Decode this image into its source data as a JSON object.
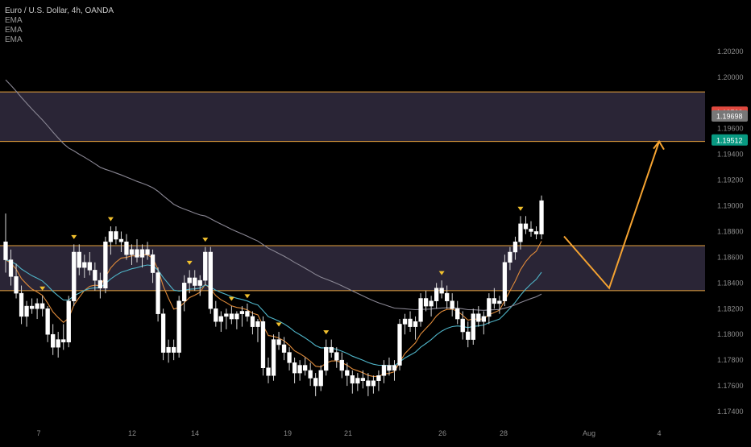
{
  "chart_data": {
    "type": "candlestick",
    "title": "Euro / U.S. Dollar, 4h, OANDA",
    "indicators": [
      "EMA",
      "EMA",
      "EMA"
    ],
    "y_range": [
      1.173,
      1.206
    ],
    "y_ticks": [
      "1.20200",
      "1.20000",
      "1.19600",
      "1.19400",
      "1.19200",
      "1.19000",
      "1.18800",
      "1.18600",
      "1.18400",
      "1.18200",
      "1.18000",
      "1.17800",
      "1.17600",
      "1.17400"
    ],
    "x_labels": [
      "7",
      "12",
      "14",
      "19",
      "21",
      "26",
      "28",
      "Aug",
      "4"
    ],
    "price_badges": [
      {
        "label": "1.19728",
        "value": 1.19728,
        "color": "#e0493f"
      },
      {
        "label": "1.19698",
        "value": 1.19698,
        "color": "#777777"
      },
      {
        "label": "1.19512",
        "value": 1.19512,
        "color": "#089981"
      }
    ],
    "zones": [
      {
        "name": "upper-resistance-zone",
        "top": 1.19885,
        "bottom": 1.195
      },
      {
        "name": "middle-demand-zone",
        "top": 1.1869,
        "bottom": 1.1834
      }
    ],
    "projection": [
      [
        1.18762,
        1.1836
      ],
      [
        1.1836,
        1.195
      ]
    ],
    "candles": [
      [
        1.1872,
        1.1894,
        1.1848,
        1.1858
      ],
      [
        1.1858,
        1.1866,
        1.1838,
        1.1845
      ],
      [
        1.1845,
        1.1855,
        1.1828,
        1.1832
      ],
      [
        1.1832,
        1.1838,
        1.1808,
        1.1814
      ],
      [
        1.1814,
        1.1826,
        1.1806,
        1.1822
      ],
      [
        1.1822,
        1.1828,
        1.1816,
        1.182
      ],
      [
        1.182,
        1.1828,
        1.1812,
        1.1824
      ],
      [
        1.1824,
        1.183,
        1.1814,
        1.182
      ],
      [
        1.182,
        1.1822,
        1.1794,
        1.18
      ],
      [
        1.18,
        1.1808,
        1.1784,
        1.179
      ],
      [
        1.179,
        1.1802,
        1.1782,
        1.1796
      ],
      [
        1.1796,
        1.1808,
        1.1788,
        1.1794
      ],
      [
        1.1794,
        1.183,
        1.179,
        1.1826
      ],
      [
        1.1826,
        1.187,
        1.1822,
        1.1864
      ],
      [
        1.1864,
        1.187,
        1.1846,
        1.1852
      ],
      [
        1.1852,
        1.1862,
        1.1844,
        1.1856
      ],
      [
        1.1856,
        1.1864,
        1.1846,
        1.185
      ],
      [
        1.185,
        1.1856,
        1.1834,
        1.1842
      ],
      [
        1.1842,
        1.1848,
        1.1828,
        1.1836
      ],
      [
        1.1836,
        1.1876,
        1.1832,
        1.1872
      ],
      [
        1.1872,
        1.1884,
        1.1862,
        1.188
      ],
      [
        1.188,
        1.1884,
        1.187,
        1.1874
      ],
      [
        1.1874,
        1.188,
        1.1864,
        1.1872
      ],
      [
        1.1872,
        1.1878,
        1.1858,
        1.1862
      ],
      [
        1.1862,
        1.187,
        1.1854,
        1.1866
      ],
      [
        1.1866,
        1.1874,
        1.1856,
        1.186
      ],
      [
        1.186,
        1.187,
        1.1852,
        1.1866
      ],
      [
        1.1866,
        1.1872,
        1.1858,
        1.1862
      ],
      [
        1.1862,
        1.1866,
        1.184,
        1.1848
      ],
      [
        1.1848,
        1.1852,
        1.181,
        1.1816
      ],
      [
        1.1816,
        1.182,
        1.178,
        1.1786
      ],
      [
        1.1786,
        1.1796,
        1.1778,
        1.179
      ],
      [
        1.179,
        1.1796,
        1.178,
        1.1786
      ],
      [
        1.1786,
        1.183,
        1.1782,
        1.1826
      ],
      [
        1.1826,
        1.1846,
        1.1818,
        1.184
      ],
      [
        1.184,
        1.185,
        1.1832,
        1.1844
      ],
      [
        1.1844,
        1.185,
        1.1834,
        1.1838
      ],
      [
        1.1838,
        1.1846,
        1.183,
        1.1842
      ],
      [
        1.1842,
        1.1868,
        1.1838,
        1.1864
      ],
      [
        1.1864,
        1.1868,
        1.1816,
        1.182
      ],
      [
        1.182,
        1.1826,
        1.1806,
        1.181
      ],
      [
        1.181,
        1.1818,
        1.1802,
        1.1814
      ],
      [
        1.1814,
        1.182,
        1.1804,
        1.1816
      ],
      [
        1.1816,
        1.1822,
        1.1808,
        1.1812
      ],
      [
        1.1812,
        1.1818,
        1.1804,
        1.1816
      ],
      [
        1.1816,
        1.1822,
        1.1806,
        1.1818
      ],
      [
        1.1818,
        1.1824,
        1.181,
        1.1814
      ],
      [
        1.1814,
        1.1818,
        1.18,
        1.1806
      ],
      [
        1.1806,
        1.1812,
        1.1794,
        1.181
      ],
      [
        1.181,
        1.1814,
        1.1768,
        1.1774
      ],
      [
        1.1774,
        1.1782,
        1.1762,
        1.1768
      ],
      [
        1.1768,
        1.18,
        1.1764,
        1.1796
      ],
      [
        1.1796,
        1.1802,
        1.1788,
        1.1792
      ],
      [
        1.1792,
        1.1798,
        1.178,
        1.1786
      ],
      [
        1.1786,
        1.179,
        1.1772,
        1.1778
      ],
      [
        1.1778,
        1.1782,
        1.1762,
        1.177
      ],
      [
        1.177,
        1.178,
        1.1764,
        1.1776
      ],
      [
        1.1776,
        1.1782,
        1.1768,
        1.1772
      ],
      [
        1.1772,
        1.1778,
        1.176,
        1.1766
      ],
      [
        1.1766,
        1.177,
        1.1752,
        1.176
      ],
      [
        1.176,
        1.1776,
        1.1756,
        1.1772
      ],
      [
        1.1772,
        1.1796,
        1.1768,
        1.179
      ],
      [
        1.179,
        1.1796,
        1.1782,
        1.1786
      ],
      [
        1.1786,
        1.179,
        1.1774,
        1.178
      ],
      [
        1.178,
        1.1786,
        1.1766,
        1.1772
      ],
      [
        1.1772,
        1.1778,
        1.176,
        1.1768
      ],
      [
        1.1768,
        1.1772,
        1.1754,
        1.1762
      ],
      [
        1.1762,
        1.177,
        1.1756,
        1.1766
      ],
      [
        1.1766,
        1.1772,
        1.1758,
        1.1764
      ],
      [
        1.1764,
        1.177,
        1.1752,
        1.176
      ],
      [
        1.176,
        1.1768,
        1.1754,
        1.1764
      ],
      [
        1.1764,
        1.1772,
        1.1756,
        1.1768
      ],
      [
        1.1768,
        1.178,
        1.1762,
        1.1776
      ],
      [
        1.1776,
        1.1782,
        1.1768,
        1.1772
      ],
      [
        1.1772,
        1.178,
        1.1764,
        1.1776
      ],
      [
        1.1776,
        1.1812,
        1.1772,
        1.1808
      ],
      [
        1.1808,
        1.1816,
        1.18,
        1.1812
      ],
      [
        1.1812,
        1.1818,
        1.1802,
        1.1806
      ],
      [
        1.1806,
        1.1814,
        1.1796,
        1.181
      ],
      [
        1.181,
        1.1832,
        1.1806,
        1.1828
      ],
      [
        1.1828,
        1.1834,
        1.1818,
        1.1822
      ],
      [
        1.1822,
        1.183,
        1.1814,
        1.1826
      ],
      [
        1.1826,
        1.184,
        1.182,
        1.1836
      ],
      [
        1.1836,
        1.1842,
        1.1828,
        1.1832
      ],
      [
        1.1832,
        1.1838,
        1.182,
        1.1826
      ],
      [
        1.1826,
        1.1832,
        1.1814,
        1.182
      ],
      [
        1.182,
        1.1826,
        1.1808,
        1.1812
      ],
      [
        1.1812,
        1.1818,
        1.1796,
        1.1802
      ],
      [
        1.1802,
        1.181,
        1.179,
        1.1796
      ],
      [
        1.1796,
        1.182,
        1.1792,
        1.1816
      ],
      [
        1.1816,
        1.1822,
        1.1806,
        1.181
      ],
      [
        1.181,
        1.1818,
        1.18,
        1.1814
      ],
      [
        1.1814,
        1.1832,
        1.1808,
        1.1828
      ],
      [
        1.1828,
        1.1836,
        1.182,
        1.1824
      ],
      [
        1.1824,
        1.183,
        1.1816,
        1.1826
      ],
      [
        1.1826,
        1.1862,
        1.1822,
        1.1856
      ],
      [
        1.1856,
        1.1868,
        1.185,
        1.1864
      ],
      [
        1.1864,
        1.1876,
        1.1858,
        1.1872
      ],
      [
        1.1872,
        1.1892,
        1.1866,
        1.1886
      ],
      [
        1.1886,
        1.1892,
        1.1878,
        1.1882
      ],
      [
        1.1882,
        1.1888,
        1.1876,
        1.188
      ],
      [
        1.188,
        1.1884,
        1.1874,
        1.1878
      ],
      [
        1.1878,
        1.1908,
        1.1874,
        1.1904
      ]
    ]
  }
}
